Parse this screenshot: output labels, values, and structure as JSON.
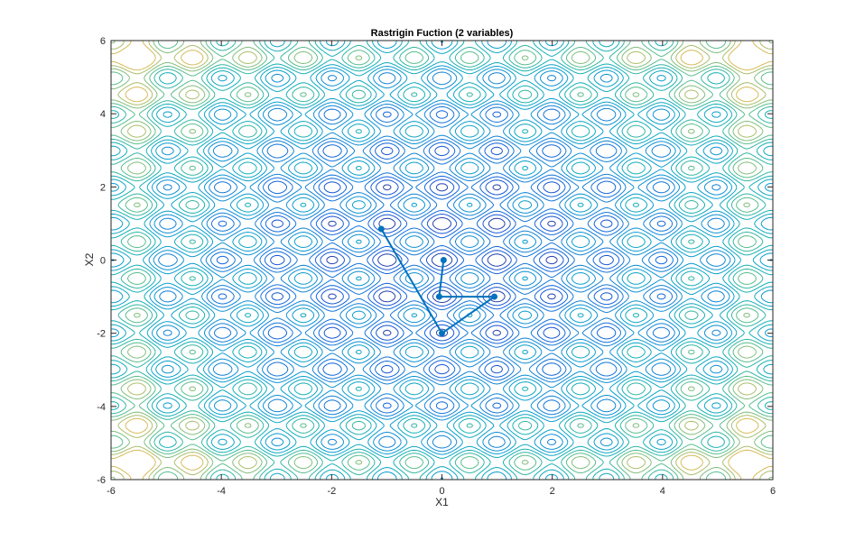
{
  "chart_data": {
    "type": "contour",
    "title": "Rastrigin Fuction (2 variables)",
    "xlabel": "X1",
    "ylabel": "X2",
    "xlim": [
      -6,
      6
    ],
    "ylim": [
      -6,
      6
    ],
    "xticks": [
      -6,
      -4,
      -2,
      0,
      2,
      4,
      6
    ],
    "yticks": [
      -6,
      -4,
      -2,
      0,
      2,
      4,
      6
    ],
    "xtick_labels": [
      "-6",
      "-4",
      "-2",
      "0",
      "2",
      "4",
      "6"
    ],
    "ytick_labels": [
      "-6",
      "-4",
      "-2",
      "0",
      "2",
      "4",
      "6"
    ],
    "grid": false,
    "colormap": "parula",
    "contour_function": "20 + x1^2 + x2^2 - 10*(cos(2*pi*x1) + cos(2*pi*x2))",
    "contour_levels": [
      6,
      12,
      18,
      24,
      30,
      36,
      42,
      48,
      54,
      60,
      66,
      72,
      78,
      84
    ],
    "contour_value_range": [
      0,
      92
    ],
    "path_series": {
      "color": "#0072BD",
      "marker": "filled-circle",
      "points": [
        {
          "x": -1.1,
          "y": 0.85
        },
        {
          "x": 0.0,
          "y": -2.0
        },
        {
          "x": 0.95,
          "y": -1.0
        },
        {
          "x": -0.05,
          "y": -1.0
        },
        {
          "x": 0.03,
          "y": 0.0
        }
      ]
    }
  }
}
